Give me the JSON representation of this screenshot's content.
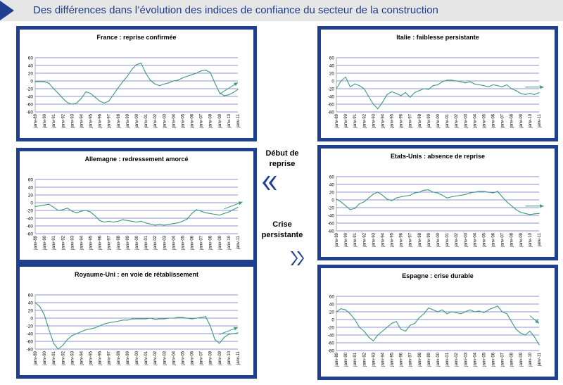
{
  "title": "Des différences dans l’évolution des indices de confiance du secteur de la construction",
  "colors": {
    "header_bg": "#e6e6e6",
    "accent": "#1f3f91",
    "line": "#3a9a7a",
    "grid": "#6c6cc8"
  },
  "legend": {
    "up_label": "Début de\nreprise",
    "down_label": "Crise\npersistante",
    "up_icon": "double-chevron-left-icon",
    "down_icon": "double-chevron-right-icon"
  },
  "chart_data": [
    {
      "type": "line",
      "title": "France : reprise confirmée",
      "ylim": [
        -80,
        60
      ],
      "yticks": [
        60,
        40,
        20,
        0,
        -20,
        -40,
        -60,
        -80
      ],
      "xlabels": [
        "janv-89",
        "janv-90",
        "janv-91",
        "janv-92",
        "janv-93",
        "janv-94",
        "janv-95",
        "janv-96",
        "janv-97",
        "janv-98",
        "janv-99",
        "janv-00",
        "janv-01",
        "janv-02",
        "janv-03",
        "janv-04",
        "janv-05",
        "janv-06",
        "janv-07",
        "janv-08",
        "janv-09",
        "janv-10",
        "janv-11"
      ],
      "x": [
        1989,
        1990,
        1990.5,
        1991,
        1991.5,
        1992,
        1992.5,
        1993,
        1993.5,
        1994,
        1994.5,
        1995,
        1995.5,
        1996,
        1996.5,
        1997,
        1997.5,
        1998,
        1998.5,
        1999,
        1999.5,
        2000,
        2000.5,
        2001,
        2001.5,
        2002,
        2002.5,
        2003,
        2003.5,
        2004,
        2004.5,
        2005,
        2005.5,
        2006,
        2006.5,
        2007,
        2007.5,
        2008,
        2008.5,
        2009,
        2009.5,
        2010,
        2010.5,
        2011
      ],
      "values": [
        -2,
        -2,
        -6,
        -20,
        -32,
        -45,
        -56,
        -60,
        -57,
        -45,
        -28,
        -32,
        -42,
        -52,
        -57,
        -52,
        -35,
        -18,
        -2,
        12,
        30,
        42,
        46,
        20,
        2,
        -8,
        -12,
        -8,
        -5,
        0,
        2,
        8,
        12,
        16,
        20,
        26,
        28,
        22,
        -5,
        -30,
        -38,
        -36,
        -30,
        -22
      ],
      "trend": [
        [
          2009,
          -34
        ],
        [
          2011,
          -4
        ]
      ]
    },
    {
      "type": "line",
      "title": "Allemagne : redressement amorcé",
      "ylim": [
        -80,
        60
      ],
      "yticks": [
        60,
        40,
        20,
        0,
        -20,
        -40,
        -60,
        -80
      ],
      "xlabels": [
        "janv-89",
        "janv-90",
        "janv-91",
        "janv-92",
        "janv-93",
        "janv-94",
        "janv-95",
        "janv-96",
        "janv-97",
        "janv-98",
        "janv-99",
        "janv-00",
        "janv-01",
        "janv-02",
        "janv-03",
        "janv-04",
        "janv-05",
        "janv-06",
        "janv-07",
        "janv-08",
        "janv-09",
        "janv-10",
        "janv-11"
      ],
      "x": [
        1989,
        1989.5,
        1990,
        1990.5,
        1991,
        1991.5,
        1992,
        1992.5,
        1993,
        1993.5,
        1994,
        1994.5,
        1995,
        1995.5,
        1996,
        1996.5,
        1997,
        1997.5,
        1998,
        1998.5,
        1999,
        1999.5,
        2000,
        2000.5,
        2001,
        2001.5,
        2002,
        2002.5,
        2003,
        2003.5,
        2004,
        2004.5,
        2005,
        2005.5,
        2006,
        2006.5,
        2007,
        2007.5,
        2008,
        2008.5,
        2009,
        2009.5,
        2010,
        2010.5,
        2011
      ],
      "values": [
        -10,
        -8,
        -6,
        -4,
        -12,
        -20,
        -18,
        -14,
        -22,
        -26,
        -22,
        -20,
        -24,
        -34,
        -46,
        -50,
        -48,
        -50,
        -48,
        -44,
        -46,
        -48,
        -50,
        -48,
        -52,
        -55,
        -58,
        -56,
        -58,
        -56,
        -54,
        -52,
        -48,
        -42,
        -28,
        -18,
        -22,
        -26,
        -28,
        -30,
        -32,
        -28,
        -24,
        -18,
        -12
      ],
      "trend": [
        [
          2009.5,
          -16
        ],
        [
          2011.5,
          2
        ]
      ]
    },
    {
      "type": "line",
      "title": "Royaume-Uni : en voie de rétablissement",
      "ylim": [
        -80,
        60
      ],
      "yticks": [
        60,
        40,
        20,
        0,
        -20,
        -40,
        -60,
        -80
      ],
      "xlabels": [
        "janv-89",
        "janv-90",
        "janv-91",
        "janv-92",
        "janv-93",
        "janv-94",
        "janv-95",
        "janv-96",
        "janv-97",
        "janv-98",
        "janv-99",
        "janv-00",
        "janv-01",
        "janv-02",
        "janv-03",
        "janv-04",
        "janv-05",
        "janv-06",
        "janv-07",
        "janv-08",
        "janv-09",
        "janv-10",
        "janv-11"
      ],
      "x": [
        1989,
        1989.5,
        1990,
        1990.5,
        1991,
        1991.5,
        1992,
        1992.5,
        1993,
        1993.5,
        1994,
        1994.5,
        1995,
        1995.5,
        1996,
        1996.5,
        1997,
        1997.5,
        1998,
        1998.5,
        1999,
        1999.5,
        2000,
        2000.5,
        2001,
        2001.5,
        2002,
        2002.5,
        2003,
        2003.5,
        2004,
        2004.5,
        2005,
        2005.5,
        2006,
        2006.5,
        2007,
        2007.5,
        2008,
        2008.5,
        2009,
        2009.5,
        2010,
        2010.5,
        2011
      ],
      "values": [
        40,
        30,
        8,
        -30,
        -65,
        -80,
        -70,
        -55,
        -45,
        -40,
        -35,
        -30,
        -28,
        -25,
        -20,
        -15,
        -12,
        -10,
        -8,
        -5,
        -5,
        -2,
        -2,
        -2,
        -2,
        0,
        -3,
        -2,
        -2,
        0,
        0,
        2,
        2,
        0,
        -2,
        0,
        2,
        4,
        -20,
        -55,
        -65,
        -50,
        -42,
        -40,
        -38
      ],
      "trend": [
        [
          2009,
          -42
        ],
        [
          2011,
          -24
        ]
      ]
    },
    {
      "type": "line",
      "title": "Italie : faiblesse persistante",
      "ylim": [
        -80,
        60
      ],
      "yticks": [
        60,
        40,
        20,
        0,
        -20,
        -40,
        -60,
        -80
      ],
      "xlabels": [
        "janv-89",
        "janv-90",
        "janv-91",
        "janv-92",
        "janv-93",
        "janv-94",
        "janv-95",
        "janv-96",
        "janv-97",
        "janv-98",
        "janv-99",
        "janv-00",
        "janv-01",
        "janv-02",
        "janv-03",
        "janv-04",
        "janv-05",
        "janv-06",
        "janv-07",
        "janv-08",
        "janv-09",
        "janv-10",
        "janv-11"
      ],
      "x": [
        1989,
        1989.5,
        1990,
        1990.5,
        1991,
        1991.5,
        1992,
        1992.5,
        1993,
        1993.5,
        1994,
        1994.5,
        1995,
        1995.5,
        1996,
        1996.5,
        1997,
        1997.5,
        1998,
        1998.5,
        1999,
        1999.5,
        2000,
        2000.5,
        2001,
        2001.5,
        2002,
        2002.5,
        2003,
        2003.5,
        2004,
        2004.5,
        2005,
        2005.5,
        2006,
        2006.5,
        2007,
        2007.5,
        2008,
        2008.5,
        2009,
        2009.5,
        2010,
        2010.5,
        2011
      ],
      "values": [
        -20,
        0,
        10,
        -15,
        -8,
        -12,
        -20,
        -40,
        -60,
        -72,
        -55,
        -35,
        -28,
        -32,
        -38,
        -30,
        -42,
        -30,
        -25,
        -20,
        -22,
        -12,
        -10,
        -2,
        2,
        2,
        0,
        -2,
        -5,
        -2,
        -8,
        -10,
        -12,
        -15,
        -10,
        -12,
        -15,
        -10,
        -20,
        -25,
        -32,
        -35,
        -32,
        -35,
        -30
      ],
      "trend": [
        [
          2009.5,
          -16
        ],
        [
          2011.5,
          -16
        ]
      ]
    },
    {
      "type": "line",
      "title": "Etats-Unis : absence de reprise",
      "ylim": [
        -80,
        60
      ],
      "yticks": [
        60,
        40,
        20,
        0,
        -20,
        -40,
        -60,
        -80
      ],
      "xlabels": [
        "janv-89",
        "janv-90",
        "janv-91",
        "janv-92",
        "janv-93",
        "janv-94",
        "janv-95",
        "janv-96",
        "janv-97",
        "janv-98",
        "janv-99",
        "janv-00",
        "janv-01",
        "janv-02",
        "janv-03",
        "janv-04",
        "janv-05",
        "janv-06",
        "janv-07",
        "janv-08",
        "janv-09",
        "janv-10",
        "janv-11"
      ],
      "x": [
        1989,
        1989.5,
        1990,
        1990.5,
        1991,
        1991.5,
        1992,
        1992.5,
        1993,
        1993.5,
        1994,
        1994.5,
        1995,
        1995.5,
        1996,
        1996.5,
        1997,
        1997.5,
        1998,
        1998.5,
        1999,
        1999.5,
        2000,
        2000.5,
        2001,
        2001.5,
        2002,
        2002.5,
        2003,
        2003.5,
        2004,
        2004.5,
        2005,
        2005.5,
        2006,
        2006.5,
        2007,
        2007.5,
        2008,
        2008.5,
        2009,
        2009.5,
        2010,
        2010.5,
        2011
      ],
      "values": [
        2,
        -5,
        -15,
        -25,
        -22,
        -10,
        -5,
        5,
        15,
        20,
        12,
        2,
        -2,
        5,
        8,
        10,
        12,
        18,
        20,
        25,
        26,
        20,
        18,
        12,
        5,
        8,
        10,
        12,
        14,
        18,
        20,
        22,
        22,
        20,
        18,
        22,
        8,
        -5,
        -15,
        -25,
        -32,
        -35,
        -38,
        -36,
        -35
      ],
      "trend": [
        [
          2009.5,
          -16
        ],
        [
          2011.5,
          -16
        ]
      ]
    },
    {
      "type": "line",
      "title": "Espagne : crise durable",
      "ylim": [
        -80,
        60
      ],
      "yticks": [
        60,
        40,
        20,
        0,
        -20,
        -40,
        -60,
        -80
      ],
      "xlabels": [
        "janv-89",
        "janv-90",
        "janv-91",
        "janv-92",
        "janv-93",
        "janv-94",
        "janv-95",
        "janv-96",
        "janv-97",
        "janv-98",
        "janv-99",
        "janv-00",
        "janv-01",
        "janv-02",
        "janv-03",
        "janv-04",
        "janv-05",
        "janv-06",
        "janv-07",
        "janv-08",
        "janv-09",
        "janv-10",
        "janv-11"
      ],
      "x": [
        1989,
        1989.5,
        1990,
        1990.5,
        1991,
        1991.5,
        1992,
        1992.5,
        1993,
        1993.5,
        1994,
        1994.5,
        1995,
        1995.5,
        1996,
        1996.5,
        1997,
        1997.5,
        1998,
        1998.5,
        1999,
        1999.5,
        2000,
        2000.5,
        2001,
        2001.5,
        2002,
        2002.5,
        2003,
        2003.5,
        2004,
        2004.5,
        2005,
        2005.5,
        2006,
        2006.5,
        2007,
        2007.5,
        2008,
        2008.5,
        2009,
        2009.5,
        2010,
        2010.5,
        2011
      ],
      "values": [
        20,
        28,
        25,
        15,
        0,
        -20,
        -30,
        -45,
        -55,
        -40,
        -30,
        -20,
        -10,
        -5,
        -25,
        -30,
        -15,
        -10,
        5,
        15,
        30,
        25,
        20,
        25,
        15,
        20,
        18,
        15,
        20,
        25,
        20,
        22,
        18,
        25,
        30,
        35,
        20,
        15,
        -5,
        -25,
        -35,
        -40,
        -30,
        -45,
        -65
      ],
      "trend": [
        [
          2010,
          10
        ],
        [
          2011,
          -10
        ]
      ]
    }
  ]
}
